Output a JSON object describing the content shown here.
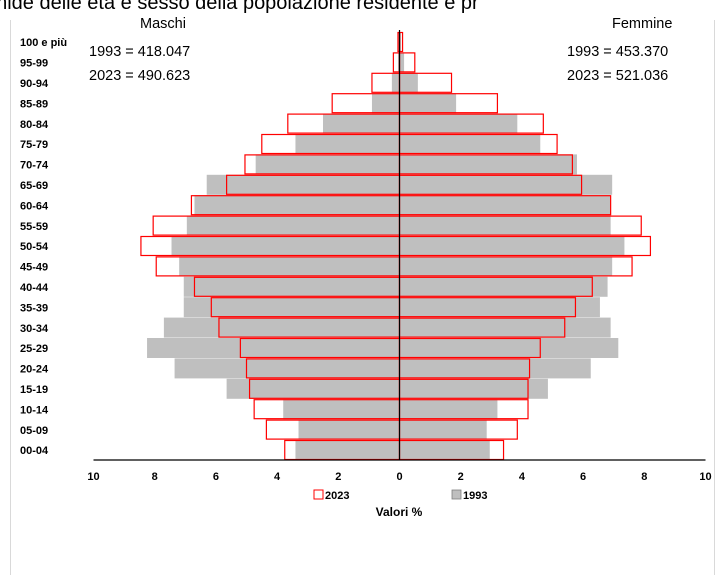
{
  "chart_data": {
    "type": "bar",
    "title": "Piramide delle età e sesso della popolazione residente e pr",
    "xlabel": "Valori %",
    "xlim": [
      -10,
      10
    ],
    "x_ticks": [
      "10",
      "8",
      "6",
      "4",
      "2",
      "0",
      "2",
      "4",
      "6",
      "8",
      "10"
    ],
    "x_tick_values": [
      -10,
      -8,
      -6,
      -4,
      -2,
      0,
      2,
      4,
      6,
      8,
      10
    ],
    "grid": false,
    "legend_position": "bottom",
    "categories": [
      "00-04",
      "05-09",
      "10-14",
      "15-19",
      "20-24",
      "25-29",
      "30-34",
      "35-39",
      "40-44",
      "45-49",
      "50-54",
      "55-59",
      "60-64",
      "65-69",
      "70-74",
      "75-79",
      "80-84",
      "85-89",
      "90-94",
      "95-99",
      "100 e più"
    ],
    "series": [
      {
        "name": "2023",
        "color": "#ff0000",
        "style": "outline",
        "maschi": [
          3.75,
          4.35,
          4.75,
          4.9,
          5.0,
          5.2,
          5.9,
          6.15,
          6.7,
          7.95,
          8.45,
          8.05,
          6.8,
          5.65,
          5.05,
          4.5,
          3.65,
          2.2,
          0.9,
          0.2,
          0.05
        ],
        "femmine": [
          3.4,
          3.85,
          4.2,
          4.2,
          4.25,
          4.6,
          5.4,
          5.75,
          6.3,
          7.6,
          8.2,
          7.9,
          6.9,
          5.95,
          5.65,
          5.15,
          4.7,
          3.2,
          1.7,
          0.5,
          0.1
        ]
      },
      {
        "name": "1993",
        "color": "#bfbfbf",
        "style": "fill",
        "maschi": [
          3.4,
          3.3,
          3.8,
          5.65,
          7.35,
          8.25,
          7.7,
          7.05,
          7.05,
          7.2,
          7.45,
          6.95,
          6.7,
          6.3,
          4.7,
          3.4,
          2.5,
          0.9,
          0.25,
          0.05,
          0.02
        ],
        "femmine": [
          2.95,
          2.85,
          3.2,
          4.85,
          6.25,
          7.15,
          6.9,
          6.55,
          6.8,
          6.95,
          7.35,
          6.9,
          6.9,
          6.95,
          5.8,
          4.6,
          3.85,
          1.85,
          0.6,
          0.15,
          0.05
        ]
      }
    ],
    "annotations": {
      "left": {
        "label": "Maschi",
        "line1": "1993 = 418.047",
        "line2": "2023 = 490.623"
      },
      "right": {
        "label": "Femmine",
        "line1": "1993 = 453.370",
        "line2": "2023 = 521.036"
      }
    }
  }
}
